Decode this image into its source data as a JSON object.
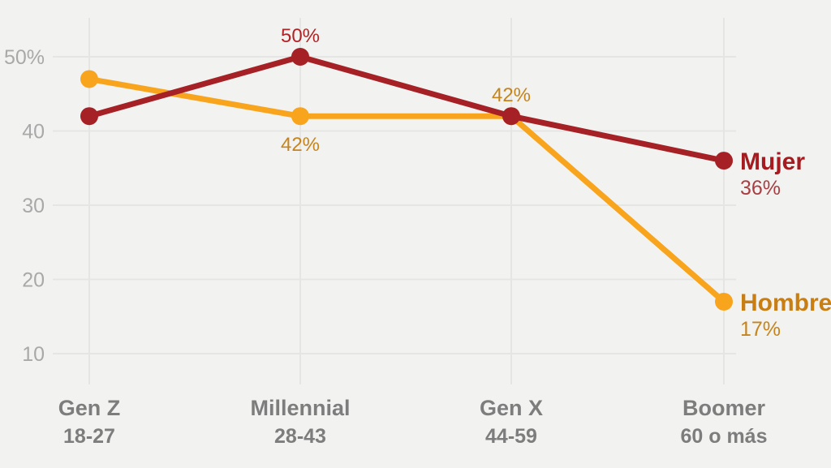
{
  "chart_data": {
    "type": "line",
    "title": "",
    "xlabel": "",
    "ylabel": "",
    "background": "#f2f2f0",
    "grid_color": "#e5e5e3",
    "grid": true,
    "legend_position": "right-of-last-point",
    "y_axis": {
      "tick_color": "#a9a9a9",
      "ticks": [
        {
          "value": 50,
          "label": "50%"
        },
        {
          "value": 40,
          "label": "40"
        },
        {
          "value": 30,
          "label": "30"
        },
        {
          "value": 20,
          "label": "20"
        },
        {
          "value": 10,
          "label": "10"
        }
      ],
      "ylim": [
        5,
        55
      ]
    },
    "x_axis": {
      "label_color": "#7d7d7d",
      "categories": [
        {
          "label": "Gen Z",
          "sublabel": "18-27"
        },
        {
          "label": "Millennial",
          "sublabel": "28-43"
        },
        {
          "label": "Gen X",
          "sublabel": "44-59"
        },
        {
          "label": "Boomer",
          "sublabel": "60 o más"
        }
      ]
    },
    "series": [
      {
        "name": "Hombre",
        "color": "#f8a51d",
        "name_color": "#c87e12",
        "values": [
          47,
          42,
          42,
          17
        ],
        "point_labels": [
          {
            "index": 1,
            "text": "42%",
            "position": "below",
            "color": "#c5841c"
          },
          {
            "index": 2,
            "text": "42%",
            "position": "above",
            "color": "#c5841c"
          }
        ],
        "end_label": {
          "name": "Hombre",
          "value_text": "17%",
          "value_color": "#c5841c"
        }
      },
      {
        "name": "Mujer",
        "color": "#a52125",
        "name_color": "#a51c20",
        "values": [
          42,
          50,
          42,
          36
        ],
        "point_labels": [
          {
            "index": 1,
            "text": "50%",
            "position": "above",
            "color": "#b02428"
          }
        ],
        "end_label": {
          "name": "Mujer",
          "value_text": "36%",
          "value_color": "#a73f43"
        }
      }
    ]
  }
}
